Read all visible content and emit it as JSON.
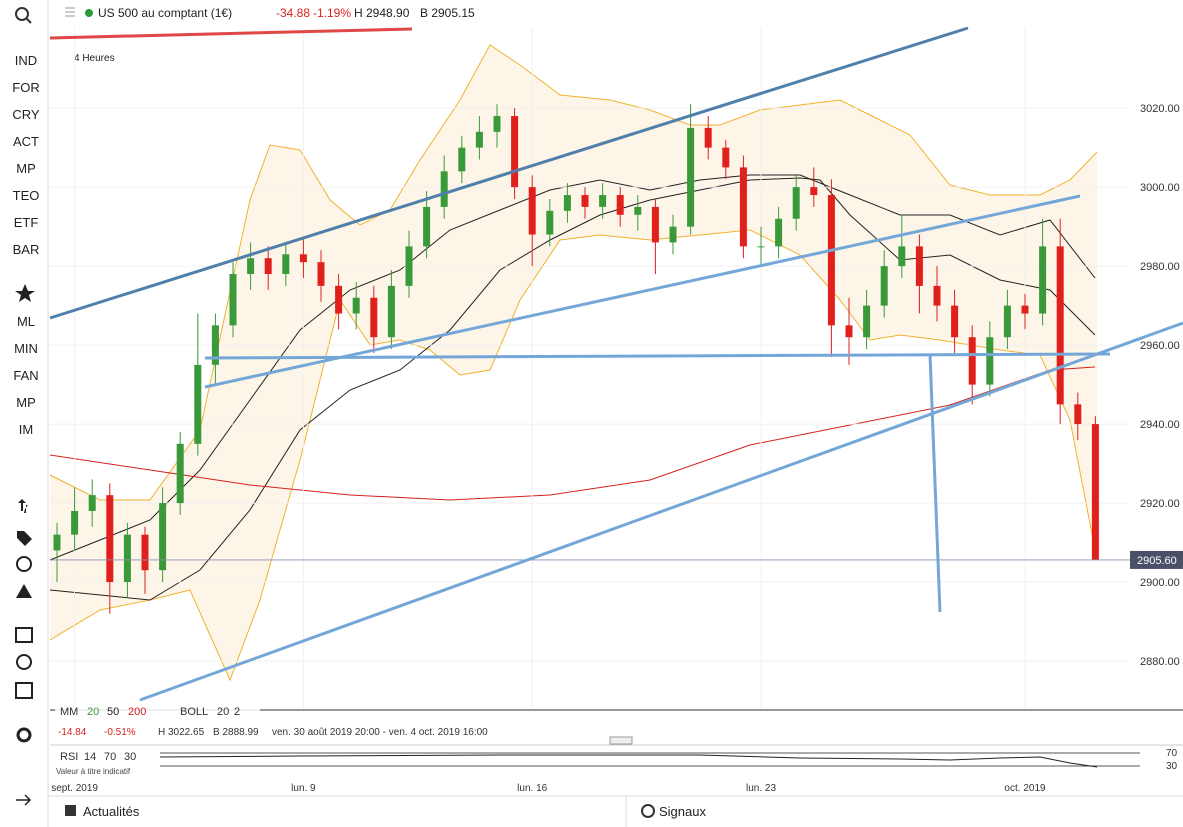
{
  "toolbar": {
    "instrument": "US 500 au comptant (1€)",
    "change": "-34.88",
    "change_pct": "-1.19%",
    "high": "H 2948.90",
    "low": "B 2905.15"
  },
  "sidebar": {
    "markets": [
      "IND",
      "FOR",
      "CRY",
      "ACT",
      "MP",
      "TEO",
      "ETF",
      "BAR"
    ],
    "tools": [
      "ML",
      "MIN",
      "FAN",
      "MP",
      "IM"
    ]
  },
  "chart_data": {
    "type": "candlestick",
    "timeframe": "4 Heures",
    "categories": [
      null,
      "sept. 2019",
      null,
      null,
      null,
      null,
      null,
      null,
      null,
      null,
      null,
      null,
      null,
      null,
      "lun. 9",
      null,
      null,
      null,
      null,
      null,
      null,
      null,
      null,
      null,
      null,
      null,
      null,
      "lun. 16",
      null,
      null,
      null,
      null,
      null,
      null,
      null,
      null,
      null,
      null,
      null,
      null,
      "lun. 23",
      null,
      null,
      null,
      null,
      null,
      null,
      null,
      null,
      null,
      null,
      null,
      null,
      null,
      null,
      "oct. 2019",
      null,
      null,
      null,
      null
    ],
    "open": [
      2908,
      2912,
      2918,
      2922,
      2900,
      2912,
      2903,
      2920,
      2935,
      2955,
      2965,
      2978,
      2982,
      2978,
      2983,
      2981,
      2975,
      2968,
      2972,
      2962,
      2975,
      2985,
      2995,
      3004,
      3010,
      3014,
      3018,
      3000,
      2988,
      2994,
      2998,
      2995,
      2998,
      2993,
      2995,
      2986,
      2990,
      3015,
      3010,
      3005,
      2985,
      2985,
      2992,
      3000,
      2998,
      2965,
      2962,
      2970,
      2980,
      2985,
      2975,
      2970,
      2962,
      2950,
      2962,
      2970,
      2968,
      2985,
      2945,
      2940
    ],
    "high": [
      2915,
      2924,
      2926,
      2925,
      2915,
      2914,
      2924,
      2938,
      2968,
      2968,
      2981,
      2986,
      2985,
      2986,
      2987,
      2984,
      2978,
      2976,
      2975,
      2979,
      2989,
      2999,
      3008,
      3013,
      3018,
      3021,
      3020,
      3003,
      2997,
      3001,
      3000,
      3001,
      3000,
      2998,
      2997,
      2993,
      3021,
      3018,
      3012,
      3008,
      2990,
      2995,
      3003,
      3005,
      3002,
      2972,
      2974,
      2984,
      2993,
      2988,
      2980,
      2974,
      2965,
      2966,
      2974,
      2973,
      2992,
      2992,
      2948,
      2942
    ],
    "low": [
      2900,
      2908,
      2914,
      2892,
      2896,
      2897,
      2900,
      2917,
      2932,
      2950,
      2962,
      2974,
      2974,
      2975,
      2977,
      2971,
      2964,
      2964,
      2958,
      2959,
      2972,
      2982,
      2992,
      3001,
      3007,
      3010,
      2997,
      2980,
      2985,
      2991,
      2992,
      2992,
      2990,
      2989,
      2978,
      2983,
      2988,
      3007,
      3002,
      2982,
      2980,
      2982,
      2989,
      2995,
      2957,
      2955,
      2959,
      2967,
      2977,
      2968,
      2966,
      2958,
      2945,
      2947,
      2959,
      2964,
      2965,
      2940,
      2936,
      2905.6
    ],
    "close": [
      2912,
      2918,
      2922,
      2900,
      2912,
      2903,
      2920,
      2935,
      2955,
      2965,
      2978,
      2982,
      2978,
      2983,
      2981,
      2975,
      2968,
      2972,
      2962,
      2975,
      2985,
      2995,
      3004,
      3010,
      3014,
      3018,
      3000,
      2988,
      2994,
      2998,
      2995,
      2998,
      2993,
      2995,
      2986,
      2990,
      3015,
      3010,
      3005,
      2985,
      2985,
      2992,
      3000,
      2998,
      2965,
      2962,
      2970,
      2980,
      2985,
      2975,
      2970,
      2962,
      2950,
      2962,
      2970,
      2968,
      2985,
      2945,
      2940,
      2905.6
    ],
    "up_color": "#3a9a3a",
    "down_color": "#e0201c",
    "ylim": [
      2867.6,
      3040.3
    ],
    "yticks": [
      {
        "value": 2880,
        "label": "2880.00"
      },
      {
        "value": 2900,
        "label": "2900.00"
      },
      {
        "value": 2920,
        "label": "2920.00"
      },
      {
        "value": 2940,
        "label": "2940.00"
      },
      {
        "value": 2960,
        "label": "2960.00"
      },
      {
        "value": 2980,
        "label": "2980.00"
      },
      {
        "value": 3000,
        "label": "3000.00"
      },
      {
        "value": 3020,
        "label": "3020.00"
      }
    ],
    "grid": true,
    "last_price": {
      "value": 2905.6,
      "label": "2905.60"
    }
  },
  "indicators": {
    "mm": "MM",
    "mm_periods": [
      "20",
      "50",
      "200"
    ],
    "boll": "BOLL",
    "boll_params": [
      "20",
      "2"
    ],
    "change": "-14.84",
    "change_pct": "-0.51%",
    "high": "H 3022.65",
    "low": "B 2888.99",
    "range": "ven. 30 août 2019 20:00 - ven. 4 oct. 2019 16:00"
  },
  "rsi": {
    "name": "RSI",
    "params": [
      "14",
      "70",
      "30"
    ],
    "note": "Valeur à titre indicatif",
    "levels": [
      "70",
      "30"
    ]
  },
  "footer_tabs": [
    "Actualités",
    "Signaux"
  ]
}
